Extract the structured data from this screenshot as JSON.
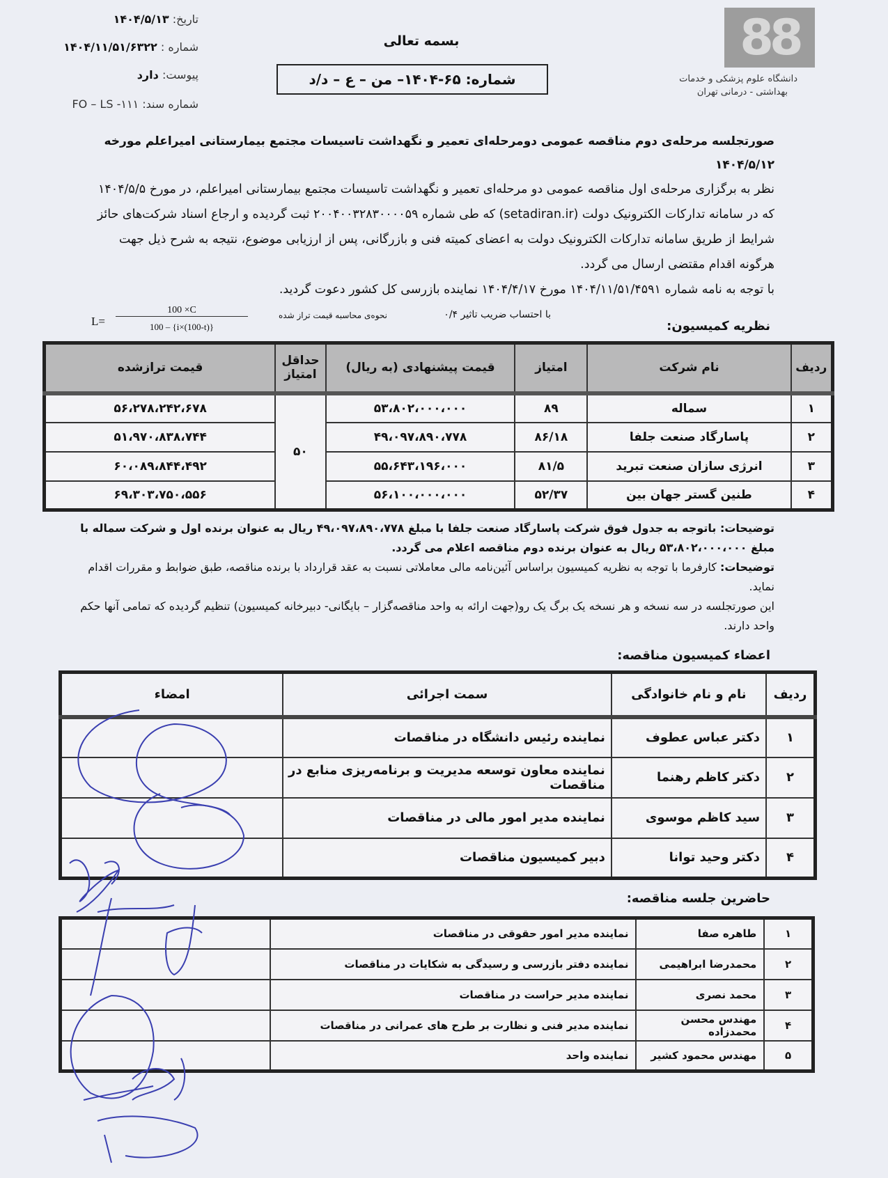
{
  "header": {
    "logo_text": "88",
    "university": [
      "دانشگاه علوم پزشکی و خدمات",
      "بهداشتی - درمانی تهران"
    ],
    "date_label": "تاریخ:",
    "date_value": "۱۴۰۴/۵/۱۳",
    "number_label": "شماره :",
    "number_value": "۱۴۰۴/۱۱/۵۱/۶۳۲۲",
    "attachment_label": "پیوست:",
    "attachment_value": "دارد",
    "doc_number": "شماره سند: ۱۱۱- FO – LS",
    "basmala": "بسمه تعالی",
    "boxed_number": "شماره: ۶۵-۱۴۰۴– من – ع – د/د"
  },
  "body": {
    "title": "صورتجلسه مرحله‌ی دوم مناقصه عمومی دومرحله‌ای تعمیر و نگهداشت تاسیسات مجتمع بیمارستانی امیراعلم مورخه ۱۴۰۴/۵/۱۲",
    "paragraph": "نظر به برگزاری مرحله‌ی اول مناقصه عمومی دو مرحله‌ای تعمیر و نگهداشت تاسیسات مجتمع بیمارستانی امیراعلم، در مورخ ۱۴۰۴/۵/۵ که در سامانه تدارکات الکترونیک دولت (setadiran.ir) که طی شماره ۲۰۰۴۰۰۳۲۸۳۰۰۰۰۵۹ ثبت گردیده و ارجاع اسناد شرکت‌های حائز شرایط از طریق سامانه تدارکات الکترونیک دولت به اعضای کمیته فنی و بازرگانی، پس از ارزیابی موضوع، نتیجه به شرح ذیل جهت هرگونه اقدام مقتضی ارسال می گردد.",
    "paragraph2": "با توجه به نامه شماره ۱۴۰۴/۱۱/۵۱/۴۵۹۱ مورخ ۱۴۰۴/۴/۱۷ نماینده بازرسی کل کشور دعوت گردید.",
    "coefficient": "با احتساب ضریب تاثیر ۰/۴",
    "formula_label": "نحوه‌ی محاسبه قیمت تراز شده",
    "formula_lhs": "L=",
    "formula_num": "100 ×C",
    "formula_den": "100 – {i×(100-t)}",
    "commission_opinion": "نظریه کمیسیون:"
  },
  "bids": {
    "headers": [
      "ردیف",
      "نام شرکت",
      "امتیاز",
      "قیمت پیشنهادی (به ریال)",
      "حداقل امتیاز",
      "قیمت ترازشده"
    ],
    "min_score": "۵۰",
    "rows": [
      {
        "n": "۱",
        "company": "سماله",
        "score": "۸۹",
        "price": "۵۳،۸۰۲،۰۰۰،۰۰۰",
        "adjusted": "۵۶،۲۷۸،۲۴۲،۶۷۸"
      },
      {
        "n": "۲",
        "company": "پاسارگاد صنعت جلفا",
        "score": "۸۶/۱۸",
        "price": "۴۹،۰۹۷،۸۹۰،۷۷۸",
        "adjusted": "۵۱،۹۷۰،۸۳۸،۷۴۴"
      },
      {
        "n": "۳",
        "company": "انرژی سازان صنعت تبرید",
        "score": "۸۱/۵",
        "price": "۵۵،۶۴۳،۱۹۶،۰۰۰",
        "adjusted": "۶۰،۰۸۹،۸۴۴،۴۹۲"
      },
      {
        "n": "۴",
        "company": "طنین گستر جهان بین",
        "score": "۵۲/۳۷",
        "price": "۵۶،۱۰۰،۰۰۰،۰۰۰",
        "adjusted": "۶۹،۳۰۳،۷۵۰،۵۵۶"
      }
    ]
  },
  "notes": {
    "n1": "توضیحات: باتوجه به جدول فوق شرکت پاسارگاد صنعت جلفا با مبلغ ۴۹،۰۹۷،۸۹۰،۷۷۸ ریال به عنوان برنده اول و شرکت سماله با مبلغ ۵۳،۸۰۲،۰۰۰،۰۰۰ ریال به عنوان برنده دوم مناقصه اعلام می گردد.",
    "n2_label": "توضیحات:",
    "n2": "کارفرما با توجه به نظریه کمیسیون براساس آئین‌نامه مالی معاملاتی نسبت به عقد قرارداد با برنده مناقصه، طبق ضوابط و مقررات اقدام نماید.",
    "n3": "این صورتجلسه در سه نسخه و هر نسخه یک برگ یک رو(جهت ارائه به واحد مناقصه‌گزار – بایگانی- دبیرخانه کمیسیون) تنظیم گردیده که تمامی آنها حکم واحد دارند."
  },
  "members": {
    "title": "اعضاء کمیسیون مناقصه:",
    "headers": [
      "ردیف",
      "نام و نام خانوادگی",
      "سمت اجرائی",
      "امضاء"
    ],
    "rows": [
      {
        "n": "۱",
        "name": "دکتر عباس عطوف",
        "role": "نماینده رئیس دانشگاه در مناقصات"
      },
      {
        "n": "۲",
        "name": "دکتر کاظم رهنما",
        "role": "نماینده معاون توسعه مدیریت و برنامه‌ریزی منابع در مناقصات"
      },
      {
        "n": "۳",
        "name": "سید کاظم موسوی",
        "role": "نماینده مدیر امور مالی در مناقصات"
      },
      {
        "n": "۴",
        "name": "دکتر وحید توانا",
        "role": "دبیر کمیسیون مناقصات"
      }
    ]
  },
  "attendees": {
    "title": "حاضرین جلسه مناقصه:",
    "rows": [
      {
        "n": "۱",
        "name": "طاهره صفا",
        "role": "نماینده مدیر امور حقوقی در مناقصات"
      },
      {
        "n": "۲",
        "name": "محمدرضا ابراهیمی",
        "role": "نماینده دفتر بازرسی و رسیدگی به شکایات در مناقصات"
      },
      {
        "n": "۳",
        "name": "محمد نصری",
        "role": "نماینده مدیر حراست در مناقصات"
      },
      {
        "n": "۴",
        "name": "مهندس محسن محمدزاده",
        "role": "نماینده مدیر فنی و نظارت بر طرح های عمرانی در مناقصات"
      },
      {
        "n": "۵",
        "name": "مهندس محمود کشیر",
        "role": "نماینده واحد"
      }
    ]
  },
  "colors": {
    "ink": "#111111",
    "signature": "#3a3fb0",
    "header_cell": "#b9b9ba",
    "paper": "#eceef4"
  }
}
